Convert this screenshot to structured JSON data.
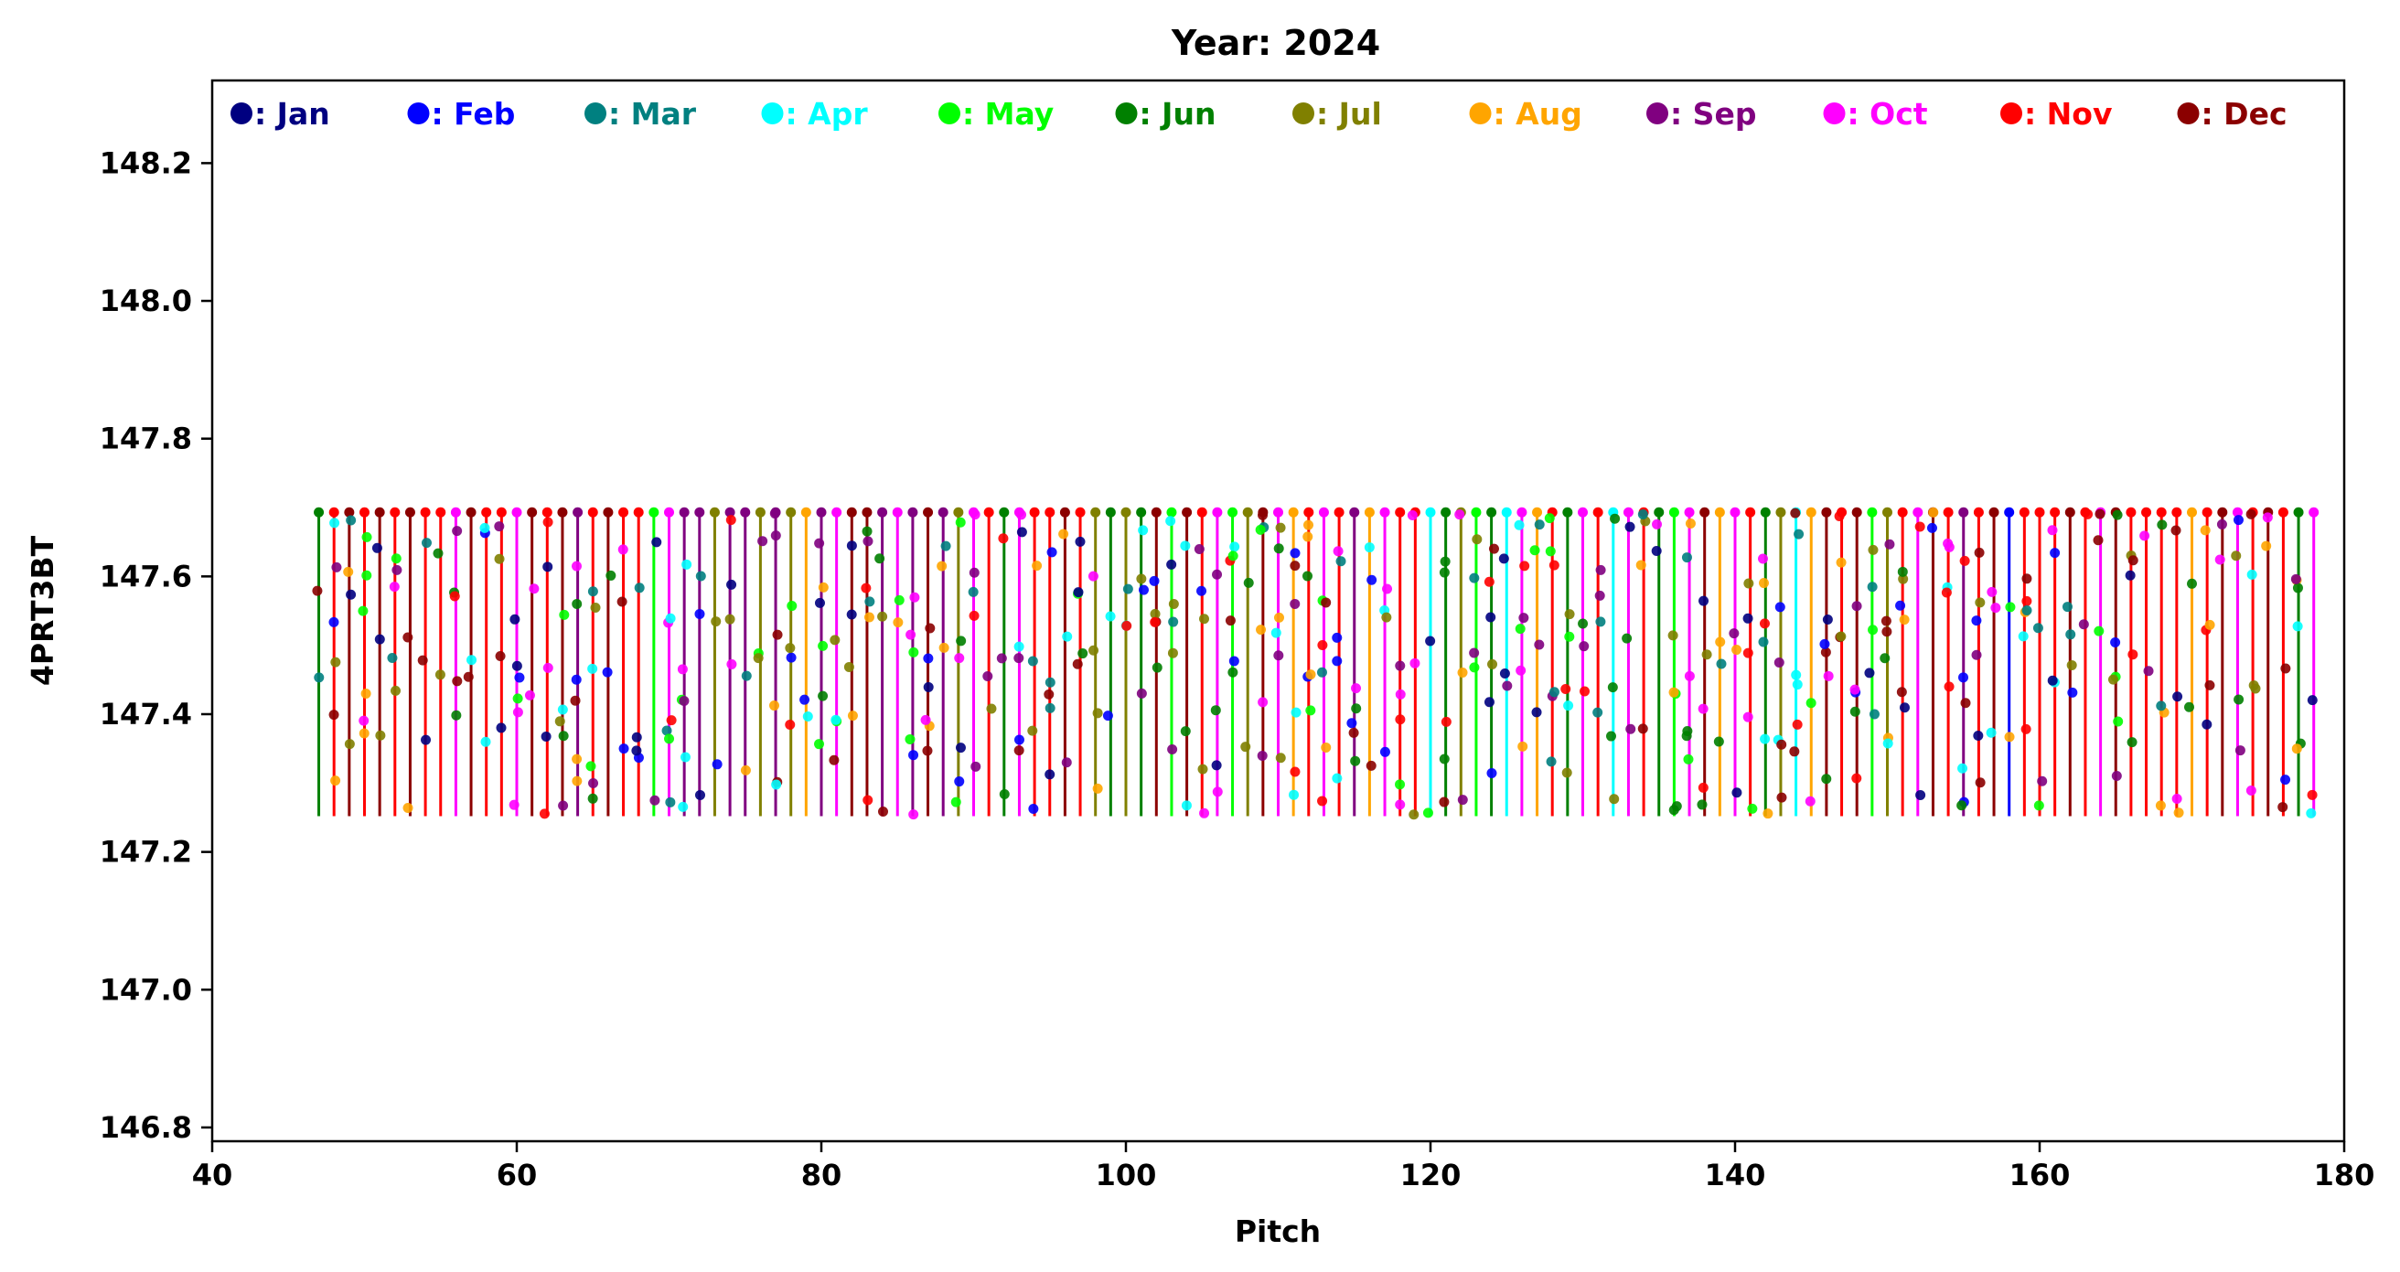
{
  "chart_data": {
    "type": "stem",
    "title": "Year: 2024",
    "xlabel": "Pitch",
    "ylabel": "4PRT3BT",
    "xlim": [
      40,
      180
    ],
    "ylim": [
      146.78,
      148.32
    ],
    "xticks": [
      40,
      60,
      80,
      100,
      120,
      140,
      160,
      180
    ],
    "xtick_labels": [
      "40",
      "60",
      "80",
      "100",
      "120",
      "140",
      "160",
      "180"
    ],
    "yticks": [
      146.8,
      147.0,
      147.2,
      147.4,
      147.6,
      147.8,
      148.0,
      148.2
    ],
    "ytick_labels": [
      "146.8",
      "147.0",
      "147.2",
      "147.4",
      "147.6",
      "147.8",
      "148.0",
      "148.2"
    ],
    "stem_range": {
      "ymin": 147.252,
      "ymax": 147.693
    },
    "point_value_range": [
      147.252,
      147.693
    ],
    "pitch_range": [
      47,
      178
    ],
    "legend": {
      "placement": "top",
      "entries": [
        {
          "label": ": Jan",
          "color": "#000080"
        },
        {
          "label": ": Feb",
          "color": "#0000ff"
        },
        {
          "label": ": Mar",
          "color": "#008080"
        },
        {
          "label": ": Apr",
          "color": "#00ffff"
        },
        {
          "label": ": May",
          "color": "#00ff00"
        },
        {
          "label": ": Jun",
          "color": "#008000"
        },
        {
          "label": ": Jul",
          "color": "#808000"
        },
        {
          "label": ": Aug",
          "color": "#ffa500"
        },
        {
          "label": ": Sep",
          "color": "#800080"
        },
        {
          "label": ": Oct",
          "color": "#ff00ff"
        },
        {
          "label": ": Nov",
          "color": "#ff0000"
        },
        {
          "label": ": Dec",
          "color": "#8b0000"
        }
      ]
    },
    "series": [
      {
        "description": "One vertical stem per pitch value (47 to 178), colored by month; markers at the top of each stem at 147.693 and scattered points along the stem between 147.252 and 147.693.",
        "stem_colors_by_pitch": [
          "#008000",
          "#ff0000",
          "#8b0000",
          "#ff0000",
          "#8b0000",
          "#ff0000",
          "#8b0000",
          "#ff0000",
          "#ff0000",
          "#ff00ff",
          "#8b0000",
          "#ff0000",
          "#ff0000",
          "#ff00ff",
          "#8b0000",
          "#ff0000",
          "#8b0000",
          "#800080",
          "#ff0000",
          "#8b0000",
          "#ff0000",
          "#ff0000",
          "#00ff00",
          "#ff00ff",
          "#800080",
          "#800080",
          "#808000",
          "#800080",
          "#800080",
          "#808000",
          "#800080",
          "#808000",
          "#ffa500",
          "#800080",
          "#ff00ff",
          "#8b0000",
          "#8b0000",
          "#800080",
          "#ff00ff",
          "#800080",
          "#8b0000",
          "#800080",
          "#808000",
          "#ff00ff",
          "#ff0000",
          "#008000",
          "#ff00ff",
          "#ff0000",
          "#ff0000",
          "#8b0000",
          "#ff0000",
          "#808000",
          "#008000",
          "#808000",
          "#008000",
          "#8b0000",
          "#00ff00",
          "#8b0000",
          "#ff0000",
          "#ff00ff",
          "#00ff00",
          "#808000",
          "#8b0000",
          "#ff00ff",
          "#ffa500",
          "#ff0000",
          "#ff00ff",
          "#ff0000",
          "#800080",
          "#ffa500",
          "#ff00ff",
          "#ff0000",
          "#ff0000",
          "#00ffff",
          "#008000",
          "#808000",
          "#00ff00",
          "#008000",
          "#00ffff",
          "#ff00ff",
          "#ffa500",
          "#ff0000",
          "#008000",
          "#ff00ff",
          "#ff0000",
          "#00ffff",
          "#ff00ff",
          "#ff0000",
          "#008000",
          "#00ff00",
          "#ff00ff",
          "#8b0000",
          "#ffa500",
          "#ff00ff",
          "#ff0000",
          "#008000",
          "#808000",
          "#00ffff",
          "#ffa500",
          "#8b0000",
          "#ff0000",
          "#8b0000",
          "#00ff00",
          "#808000",
          "#ff0000",
          "#ff00ff",
          "#8b0000",
          "#ff0000",
          "#800080",
          "#ff0000",
          "#8b0000",
          "#0000ff",
          "#ff0000",
          "#ff0000",
          "#ff0000",
          "#8b0000",
          "#ff0000",
          "#ff00ff",
          "#8b0000",
          "#ff0000",
          "#ff0000",
          "#ff0000",
          "#ff0000",
          "#ffa500",
          "#ff0000",
          "#8b0000",
          "#ff00ff",
          "#ff0000",
          "#8b0000",
          "#ff0000",
          "#008000",
          "#ff00ff"
        ]
      }
    ]
  }
}
